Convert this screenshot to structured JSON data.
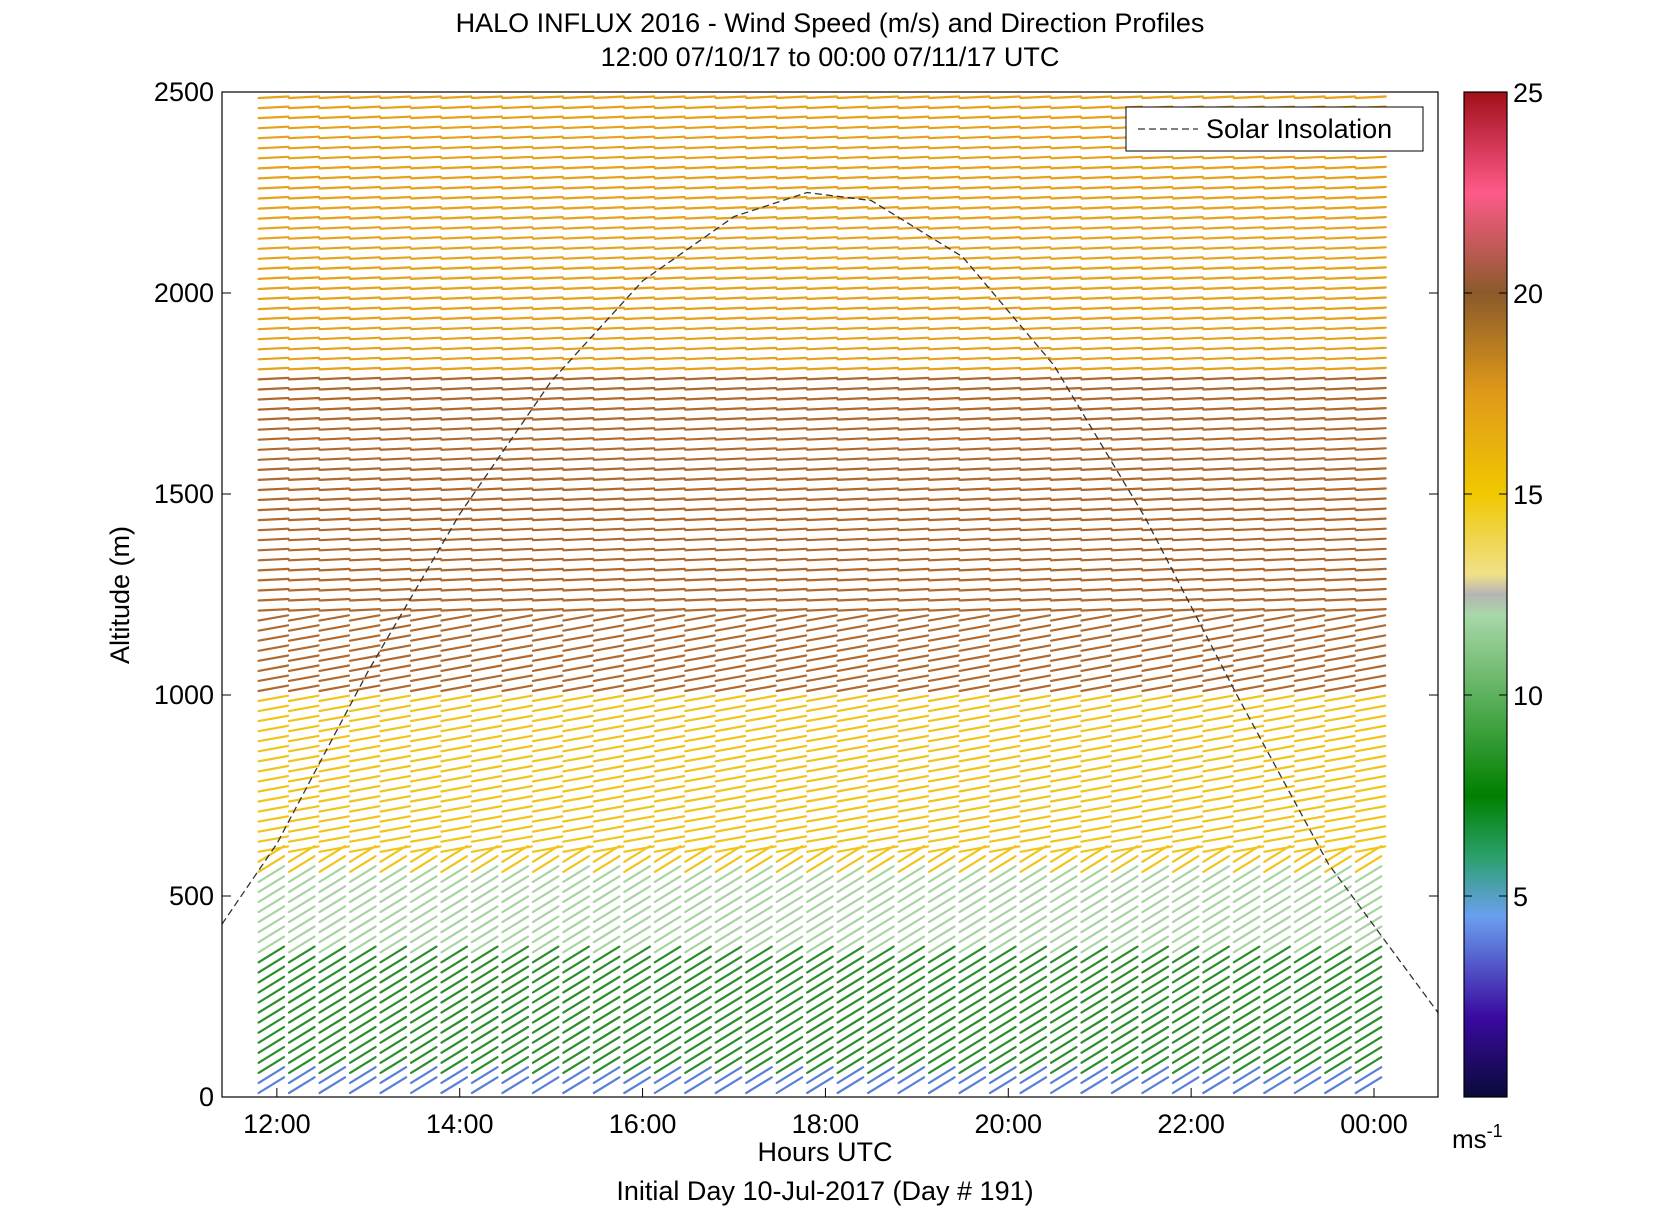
{
  "chart_data": {
    "type": "wind-barb-profile",
    "title": "HALO INFLUX 2016 - Wind Speed (m/s) and Direction Profiles",
    "subtitle": "12:00 07/10/17 to 00:00 07/11/17  UTC",
    "xlabel": "Hours UTC",
    "xlabel2": "Initial Day 10-Jul-2017 (Day # 191)",
    "ylabel": "Altitude (m)",
    "xlim": [
      11.4,
      24.7
    ],
    "ylim": [
      0,
      2500
    ],
    "x_ticks": [
      12,
      14,
      16,
      18,
      20,
      22,
      24
    ],
    "x_tick_labels": [
      "12:00",
      "14:00",
      "16:00",
      "18:00",
      "20:00",
      "22:00",
      "00:00"
    ],
    "y_ticks": [
      0,
      500,
      1000,
      1500,
      2000,
      2500
    ],
    "y_tick_labels": [
      "0",
      "500",
      "1000",
      "1500",
      "2000",
      "2500"
    ],
    "legend": {
      "entries": [
        "Solar Insolation"
      ],
      "placement": "top-right"
    },
    "colorbar": {
      "range": [
        0,
        25
      ],
      "ticks": [
        5,
        10,
        15,
        20,
        25
      ],
      "tick_labels": [
        "5",
        "10",
        "15",
        "20",
        "25"
      ],
      "unit_base": "ms",
      "unit_exp": "-1"
    },
    "solar_insolation": {
      "style": "dashed",
      "x": [
        11.4,
        12,
        13,
        14,
        15,
        16,
        17,
        17.8,
        18.5,
        19.5,
        20.5,
        21.5,
        22.5,
        23.5,
        24.7
      ],
      "y": [
        430,
        630,
        1060,
        1450,
        1780,
        2030,
        2190,
        2250,
        2230,
        2090,
        1820,
        1440,
        1000,
        580,
        210
      ]
    },
    "profiles": {
      "time_range_hours": [
        11.8,
        23.8
      ],
      "altitude_range_m": [
        10,
        2490
      ],
      "speed_bands_by_altitude": [
        {
          "altitude_m": [
            0,
            60
          ],
          "speed_ms": 5,
          "color": "#5b7fd8"
        },
        {
          "altitude_m": [
            60,
            350
          ],
          "speed_ms": 9,
          "color": "#2a8f2a"
        },
        {
          "altitude_m": [
            350,
            550
          ],
          "speed_ms": 12,
          "color": "#a7d4a1"
        },
        {
          "altitude_m": [
            550,
            1000
          ],
          "speed_ms": 15,
          "color": "#f0c419"
        },
        {
          "altitude_m": [
            1000,
            1800
          ],
          "speed_ms": 19,
          "color": "#b06a2f"
        },
        {
          "altitude_m": [
            1800,
            2490
          ],
          "speed_ms": 16,
          "color": "#e6a21a"
        }
      ]
    }
  },
  "colors": {
    "colorbar_stops": [
      "#0a0a3a",
      "#3a0aa0",
      "#6aa0f0",
      "#2aa06a",
      "#008000",
      "#a8d8a8",
      "#b4b4b4",
      "#f0e08a",
      "#f0c800",
      "#e09a1a",
      "#8a5a2a",
      "#ff5a8a",
      "#a0101a"
    ]
  }
}
